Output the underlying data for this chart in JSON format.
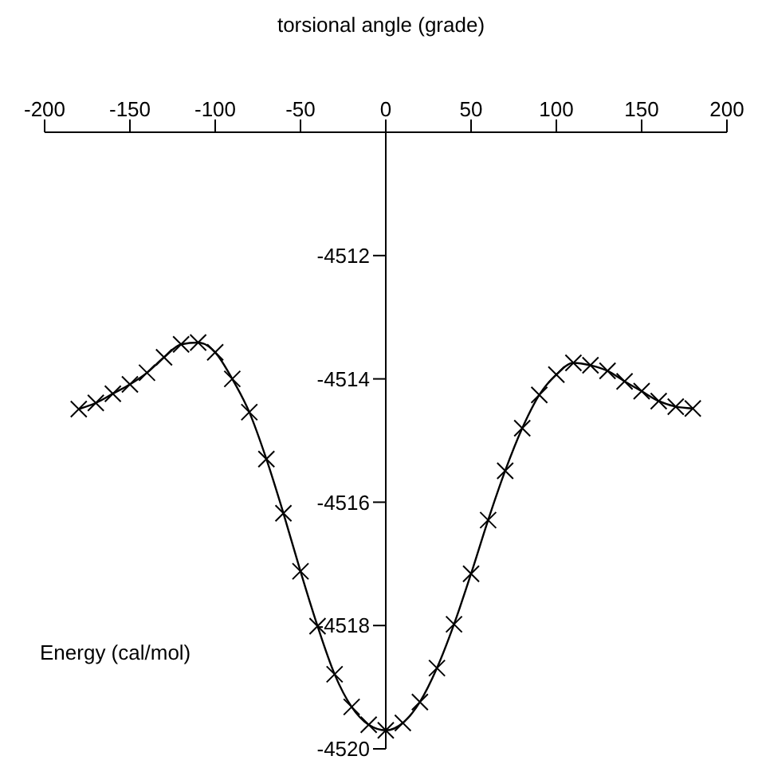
{
  "chart_data": {
    "type": "line",
    "xlabel": "torsional angle (grade)",
    "ylabel": "Energy (cal/mol)",
    "x": [
      -180,
      -170,
      -160,
      -150,
      -140,
      -130,
      -120,
      -110,
      -100,
      -90,
      -80,
      -70,
      -60,
      -50,
      -40,
      -30,
      -20,
      -10,
      0,
      10,
      20,
      30,
      40,
      50,
      60,
      70,
      80,
      90,
      100,
      110,
      120,
      130,
      140,
      150,
      160,
      170,
      180
    ],
    "series": [
      {
        "color": "#000000",
        "values": [
          -4514.49,
          -4514.39,
          -4514.24,
          -4514.09,
          -4513.9,
          -4513.65,
          -4513.44,
          -4513.41,
          -4513.57,
          -4514.0,
          -4514.54,
          -4515.3,
          -4516.18,
          -4517.12,
          -4518.01,
          -4518.79,
          -4519.32,
          -4519.61,
          -4519.7,
          -4519.58,
          -4519.24,
          -4518.69,
          -4517.98,
          -4517.16,
          -4516.29,
          -4515.49,
          -4514.8,
          -4514.26,
          -4513.93,
          -4513.74,
          -4513.78,
          -4513.87,
          -4514.04,
          -4514.2,
          -4514.36,
          -4514.45,
          -4514.48
        ]
      }
    ],
    "xlim": [
      -200,
      200
    ],
    "xticks": [
      -200,
      -150,
      -100,
      -50,
      0,
      50,
      100,
      150,
      200
    ],
    "ylim": [
      -4520,
      -4510
    ],
    "yticks": [
      -4520,
      -4518,
      -4516,
      -4514,
      -4512
    ],
    "marker": "cross",
    "line_style": "solid",
    "grid": false
  }
}
